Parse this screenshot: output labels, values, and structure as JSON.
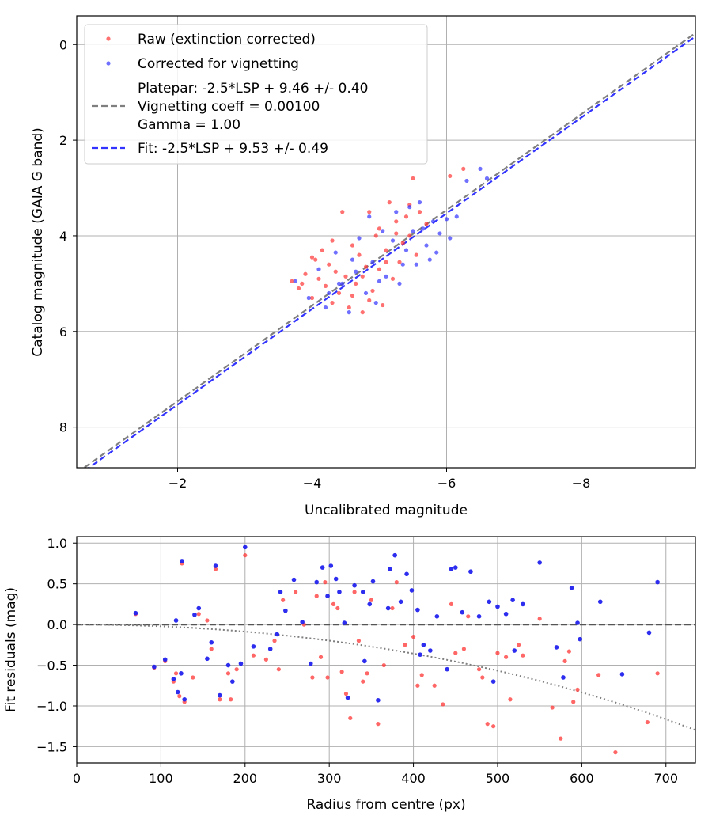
{
  "chart_data": [
    {
      "type": "scatter",
      "xlabel": "Uncalibrated magnitude",
      "ylabel": "Catalog magnitude (GAIA G band)",
      "xlim": [
        -0.5,
        -9.7
      ],
      "ylim": [
        8.85,
        -0.6
      ],
      "x_ticks": [
        -2,
        -4,
        -6,
        -8
      ],
      "x_tick_labels": [
        "−2",
        "−4",
        "−6",
        "−8"
      ],
      "y_ticks": [
        0,
        2,
        4,
        6,
        8
      ],
      "y_tick_labels": [
        "0",
        "2",
        "4",
        "6",
        "8"
      ],
      "grid": true,
      "legend": "top-left",
      "legend_entries": {
        "raw": "Raw (extinction corrected)",
        "corrected": "Corrected for vignetting",
        "platepar": [
          "Platepar: -2.5*LSP + 9.46 +/- 0.40",
          "Vignetting coeff = 0.00100",
          "Gamma = 1.00"
        ],
        "fit": "Fit: -2.5*LSP + 9.53 +/- 0.49"
      },
      "lines": [
        {
          "name": "platepar",
          "intercept": 9.46,
          "color": "#7f7f7f"
        },
        {
          "name": "fit",
          "intercept": 9.53,
          "color": "#3333ff"
        }
      ],
      "series": [
        {
          "name": "Raw (extinction corrected)",
          "color": "#ff3333",
          "points": [
            [
              -3.7,
              4.95
            ],
            [
              -3.8,
              5.1
            ],
            [
              -3.9,
              4.8
            ],
            [
              -4.0,
              5.3
            ],
            [
              -4.05,
              4.5
            ],
            [
              -4.1,
              4.9
            ],
            [
              -4.15,
              4.3
            ],
            [
              -4.2,
              5.05
            ],
            [
              -4.25,
              4.6
            ],
            [
              -4.3,
              5.4
            ],
            [
              -4.3,
              4.1
            ],
            [
              -4.35,
              4.75
            ],
            [
              -4.4,
              5.2
            ],
            [
              -4.45,
              3.5
            ],
            [
              -4.5,
              4.85
            ],
            [
              -4.55,
              5.5
            ],
            [
              -4.6,
              4.2
            ],
            [
              -4.65,
              5.0
            ],
            [
              -4.7,
              4.4
            ],
            [
              -4.75,
              5.6
            ],
            [
              -4.8,
              4.65
            ],
            [
              -4.85,
              3.5
            ],
            [
              -4.9,
              5.15
            ],
            [
              -4.95,
              4.0
            ],
            [
              -5.0,
              4.7
            ],
            [
              -5.05,
              5.45
            ],
            [
              -5.1,
              4.3
            ],
            [
              -5.15,
              3.3
            ],
            [
              -5.2,
              4.9
            ],
            [
              -5.25,
              3.7
            ],
            [
              -5.3,
              4.55
            ],
            [
              -5.35,
              4.15
            ],
            [
              -5.4,
              3.6
            ],
            [
              -5.45,
              4.0
            ],
            [
              -5.5,
              2.8
            ],
            [
              -5.55,
              4.4
            ],
            [
              -5.6,
              3.5
            ],
            [
              -5.7,
              3.75
            ],
            [
              -6.25,
              2.6
            ],
            [
              -6.05,
              2.75
            ],
            [
              -3.85,
              5.0
            ],
            [
              -4.0,
              4.45
            ],
            [
              -4.6,
              5.25
            ],
            [
              -4.75,
              4.85
            ],
            [
              -4.85,
              5.35
            ],
            [
              -5.0,
              3.85
            ],
            [
              -5.1,
              4.55
            ],
            [
              -5.25,
              3.95
            ],
            [
              -5.45,
              3.35
            ]
          ]
        },
        {
          "name": "Corrected for vignetting",
          "color": "#3333ff",
          "points": [
            [
              -3.75,
              4.95
            ],
            [
              -3.95,
              5.3
            ],
            [
              -4.1,
              4.7
            ],
            [
              -4.2,
              5.5
            ],
            [
              -4.25,
              5.2
            ],
            [
              -4.35,
              4.35
            ],
            [
              -4.45,
              5.0
            ],
            [
              -4.55,
              5.6
            ],
            [
              -4.6,
              4.5
            ],
            [
              -4.7,
              4.05
            ],
            [
              -4.8,
              5.2
            ],
            [
              -4.9,
              4.55
            ],
            [
              -4.95,
              5.4
            ],
            [
              -5.05,
              3.9
            ],
            [
              -5.1,
              4.85
            ],
            [
              -5.2,
              4.1
            ],
            [
              -5.25,
              3.5
            ],
            [
              -5.3,
              5.0
            ],
            [
              -5.4,
              4.3
            ],
            [
              -5.5,
              3.9
            ],
            [
              -5.55,
              4.6
            ],
            [
              -5.6,
              3.3
            ],
            [
              -5.7,
              4.2
            ],
            [
              -5.8,
              3.7
            ],
            [
              -5.85,
              4.35
            ],
            [
              -6.0,
              3.65
            ],
            [
              -6.05,
              4.05
            ],
            [
              -6.3,
              2.85
            ],
            [
              -6.5,
              2.6
            ],
            [
              -6.6,
              2.8
            ],
            [
              -6.15,
              3.6
            ],
            [
              -5.9,
              3.95
            ],
            [
              -5.65,
              3.85
            ],
            [
              -5.45,
              3.4
            ],
            [
              -5.35,
              4.6
            ],
            [
              -4.85,
              3.6
            ],
            [
              -4.65,
              4.75
            ],
            [
              -4.4,
              5.0
            ],
            [
              -5.0,
              4.95
            ],
            [
              -5.75,
              4.5
            ]
          ]
        }
      ]
    },
    {
      "type": "scatter",
      "xlabel": "Radius from centre (px)",
      "ylabel": "Fit residuals (mag)",
      "xlim": [
        0,
        735
      ],
      "ylim": [
        -1.7,
        1.08
      ],
      "x_ticks": [
        0,
        100,
        200,
        300,
        400,
        500,
        600,
        700
      ],
      "x_tick_labels": [
        "0",
        "100",
        "200",
        "300",
        "400",
        "500",
        "600",
        "700"
      ],
      "y_ticks": [
        1.0,
        0.5,
        0.0,
        -0.5,
        -1.0,
        -1.5
      ],
      "y_tick_labels": [
        "1.0",
        "0.5",
        "0.0",
        "−0.5",
        "−1.0",
        "−1.5"
      ],
      "grid": true,
      "reference_line": {
        "y": 0,
        "color": "#555555"
      },
      "vignetting_curve": {
        "coeff": 0.001,
        "gamma": 1.0,
        "color": "#7f7f7f"
      },
      "series": [
        {
          "name": "Raw (extinction corrected)",
          "color": "#ff3333",
          "points": [
            [
              70,
              0.13
            ],
            [
              92,
              -0.53
            ],
            [
              105,
              -0.45
            ],
            [
              115,
              -0.7
            ],
            [
              118,
              -0.6
            ],
            [
              122,
              -0.88
            ],
            [
              125,
              0.75
            ],
            [
              128,
              -0.95
            ],
            [
              138,
              -0.65
            ],
            [
              145,
              0.13
            ],
            [
              155,
              0.05
            ],
            [
              160,
              -0.3
            ],
            [
              165,
              0.68
            ],
            [
              170,
              -0.92
            ],
            [
              180,
              -0.6
            ],
            [
              183,
              -0.92
            ],
            [
              190,
              -0.55
            ],
            [
              200,
              0.85
            ],
            [
              210,
              -0.38
            ],
            [
              225,
              -0.43
            ],
            [
              235,
              -0.2
            ],
            [
              240,
              -0.55
            ],
            [
              245,
              0.3
            ],
            [
              260,
              0.4
            ],
            [
              270,
              0.0
            ],
            [
              280,
              -0.65
            ],
            [
              285,
              0.35
            ],
            [
              290,
              -0.4
            ],
            [
              295,
              0.52
            ],
            [
              298,
              -0.65
            ],
            [
              305,
              0.25
            ],
            [
              310,
              0.2
            ],
            [
              315,
              -0.58
            ],
            [
              320,
              -0.85
            ],
            [
              325,
              -1.15
            ],
            [
              330,
              0.4
            ],
            [
              335,
              -0.2
            ],
            [
              340,
              -0.7
            ],
            [
              345,
              -0.6
            ],
            [
              350,
              0.3
            ],
            [
              358,
              -1.22
            ],
            [
              365,
              -0.5
            ],
            [
              375,
              0.2
            ],
            [
              380,
              0.52
            ],
            [
              390,
              -0.25
            ],
            [
              400,
              -0.15
            ],
            [
              405,
              -0.75
            ],
            [
              410,
              -0.62
            ],
            [
              425,
              -0.75
            ],
            [
              435,
              -0.98
            ],
            [
              445,
              0.25
            ],
            [
              450,
              -0.35
            ],
            [
              460,
              -0.3
            ],
            [
              465,
              0.1
            ],
            [
              478,
              -0.55
            ],
            [
              482,
              -0.65
            ],
            [
              488,
              -1.22
            ],
            [
              495,
              -1.25
            ],
            [
              500,
              -0.35
            ],
            [
              510,
              -0.4
            ],
            [
              515,
              -0.92
            ],
            [
              525,
              -0.25
            ],
            [
              530,
              -0.38
            ],
            [
              550,
              0.07
            ],
            [
              565,
              -1.02
            ],
            [
              575,
              -1.4
            ],
            [
              580,
              -0.45
            ],
            [
              585,
              -0.33
            ],
            [
              590,
              -0.95
            ],
            [
              595,
              -0.8
            ],
            [
              620,
              -0.62
            ],
            [
              640,
              -1.57
            ],
            [
              678,
              -1.2
            ],
            [
              690,
              -0.6
            ]
          ]
        },
        {
          "name": "Corrected for vignetting",
          "color": "#2222ee",
          "points": [
            [
              70,
              0.14
            ],
            [
              92,
              -0.52
            ],
            [
              105,
              -0.43
            ],
            [
              115,
              -0.67
            ],
            [
              118,
              0.05
            ],
            [
              120,
              -0.83
            ],
            [
              124,
              -0.6
            ],
            [
              125,
              0.78
            ],
            [
              128,
              -0.92
            ],
            [
              140,
              0.12
            ],
            [
              145,
              0.2
            ],
            [
              155,
              -0.42
            ],
            [
              160,
              -0.22
            ],
            [
              165,
              0.72
            ],
            [
              170,
              -0.87
            ],
            [
              180,
              -0.5
            ],
            [
              185,
              -0.7
            ],
            [
              195,
              -0.48
            ],
            [
              200,
              0.95
            ],
            [
              210,
              -0.27
            ],
            [
              230,
              -0.3
            ],
            [
              238,
              -0.12
            ],
            [
              242,
              0.4
            ],
            [
              248,
              0.17
            ],
            [
              258,
              0.55
            ],
            [
              268,
              0.03
            ],
            [
              278,
              -0.48
            ],
            [
              285,
              0.52
            ],
            [
              292,
              0.7
            ],
            [
              298,
              0.35
            ],
            [
              302,
              0.72
            ],
            [
              308,
              0.56
            ],
            [
              312,
              0.4
            ],
            [
              318,
              0.02
            ],
            [
              322,
              -0.9
            ],
            [
              330,
              0.48
            ],
            [
              340,
              0.4
            ],
            [
              342,
              -0.45
            ],
            [
              348,
              0.25
            ],
            [
              352,
              0.53
            ],
            [
              358,
              -0.93
            ],
            [
              370,
              0.2
            ],
            [
              372,
              0.68
            ],
            [
              378,
              0.85
            ],
            [
              385,
              0.28
            ],
            [
              392,
              0.62
            ],
            [
              398,
              0.42
            ],
            [
              405,
              0.18
            ],
            [
              408,
              -0.37
            ],
            [
              412,
              -0.25
            ],
            [
              420,
              -0.32
            ],
            [
              428,
              0.1
            ],
            [
              440,
              -0.55
            ],
            [
              445,
              0.68
            ],
            [
              450,
              0.7
            ],
            [
              458,
              0.15
            ],
            [
              468,
              0.65
            ],
            [
              478,
              0.1
            ],
            [
              490,
              0.28
            ],
            [
              495,
              -0.7
            ],
            [
              500,
              0.22
            ],
            [
              510,
              0.13
            ],
            [
              518,
              0.3
            ],
            [
              520,
              -0.32
            ],
            [
              530,
              0.25
            ],
            [
              550,
              0.76
            ],
            [
              570,
              -0.28
            ],
            [
              578,
              -0.65
            ],
            [
              588,
              0.45
            ],
            [
              595,
              0.02
            ],
            [
              598,
              -0.18
            ],
            [
              622,
              0.28
            ],
            [
              648,
              -0.61
            ],
            [
              680,
              -0.1
            ],
            [
              690,
              0.52
            ]
          ]
        }
      ]
    }
  ]
}
